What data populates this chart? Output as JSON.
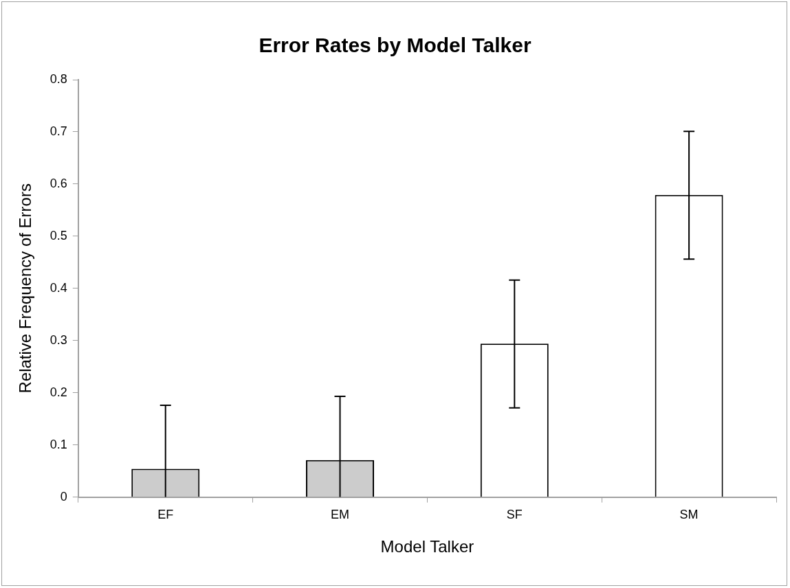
{
  "chart_data": {
    "type": "bar",
    "title": "Error Rates by Model Talker",
    "xlabel": "Model Talker",
    "ylabel": "Relative Frequency of Errors",
    "categories": [
      "EF",
      "EM",
      "SF",
      "SM"
    ],
    "values": [
      0.054,
      0.071,
      0.294,
      0.579
    ],
    "colors": [
      "#cccccc",
      "#cccccc",
      "#ffffff",
      "#ffffff"
    ],
    "errors": [
      [
        0,
        0.176
      ],
      [
        0,
        0.193
      ],
      [
        0.171,
        0.416
      ],
      [
        0.456,
        0.701
      ]
    ],
    "ylim": [
      0,
      0.8
    ],
    "yticks": [
      0,
      0.1,
      0.2,
      0.3,
      0.4,
      0.5,
      0.6,
      0.7,
      0.8
    ],
    "grid": false,
    "legend": false
  }
}
